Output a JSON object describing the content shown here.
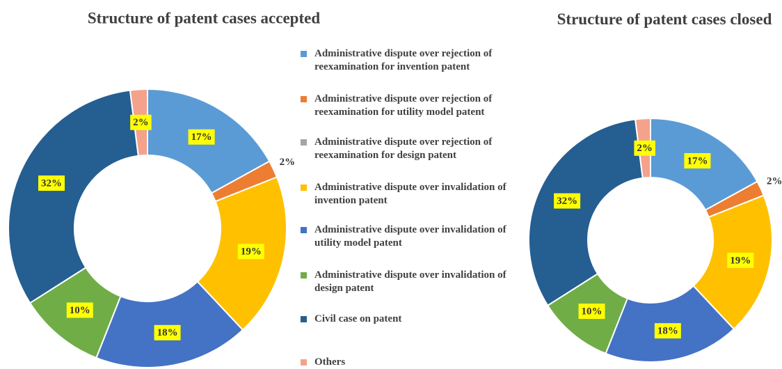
{
  "chart_data": [
    {
      "type": "donut",
      "title": "Structure of patent cases accepted",
      "categories": [
        "Administrative dispute over rejection of reexamination for invention patent",
        "Administrative dispute over rejection of reexamination for utility model patent",
        "Administrative dispute over rejection of reexamination for design patent",
        "Administrative dispute over invalidation of invention patent",
        "Administrative dispute over invalidation of utility model patent",
        "Administrative dispute over invalidation of design patent",
        "Civil case on patent",
        "Others"
      ],
      "colors": [
        "#5b9bd5",
        "#ed7d31",
        "#a5a5a5",
        "#ffc000",
        "#4472c4",
        "#70ad47",
        "#255e91",
        "#f4a28c"
      ],
      "values": [
        17,
        2,
        0,
        19,
        18,
        10,
        32,
        2
      ],
      "value_labels": [
        "17%",
        "2%",
        null,
        "19%",
        "18%",
        "10%",
        "32%",
        "2%"
      ]
    },
    {
      "type": "donut",
      "title": "Structure of patent cases closed",
      "values": [
        17,
        2,
        0,
        19,
        18,
        10,
        32,
        2
      ],
      "value_labels": [
        "17%",
        "2%",
        null,
        "19%",
        "18%",
        "10%",
        "32%",
        "2%"
      ]
    }
  ]
}
